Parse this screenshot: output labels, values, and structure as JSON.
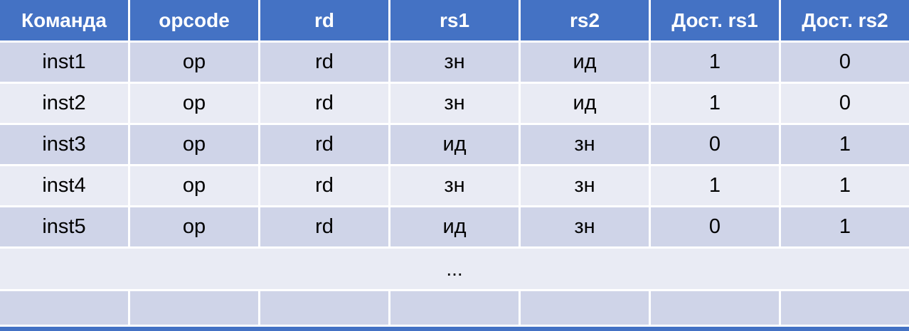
{
  "chart_data": {
    "type": "table",
    "title": "",
    "columns": [
      "Команда",
      "opcode",
      "rd",
      "rs1",
      "rs2",
      "Дост. rs1",
      "Дост. rs2"
    ],
    "rows": [
      [
        "inst1",
        "op",
        "rd",
        "зн",
        "ид",
        "1",
        "0"
      ],
      [
        "inst2",
        "op",
        "rd",
        "зн",
        "ид",
        "1",
        "0"
      ],
      [
        "inst3",
        "op",
        "rd",
        "ид",
        "зн",
        "0",
        "1"
      ],
      [
        "inst4",
        "op",
        "rd",
        "зн",
        "зн",
        "1",
        "1"
      ],
      [
        "inst5",
        "op",
        "rd",
        "ид",
        "зн",
        "0",
        "1"
      ]
    ],
    "ellipsis_label": "...",
    "layout_hints": {
      "banding": "alternating rows dark/light starting dark",
      "ellipsis_row_merged": true,
      "trailing_empty_row": true,
      "partial_next_row_visible_at_bottom": true
    }
  },
  "colors": {
    "header_bg": "#4472C4",
    "header_text": "#FFFFFF",
    "row_dark": "#CFD4E8",
    "row_light": "#E9EBF4",
    "body_text": "#000000",
    "grid_gap": "#FFFFFF"
  }
}
